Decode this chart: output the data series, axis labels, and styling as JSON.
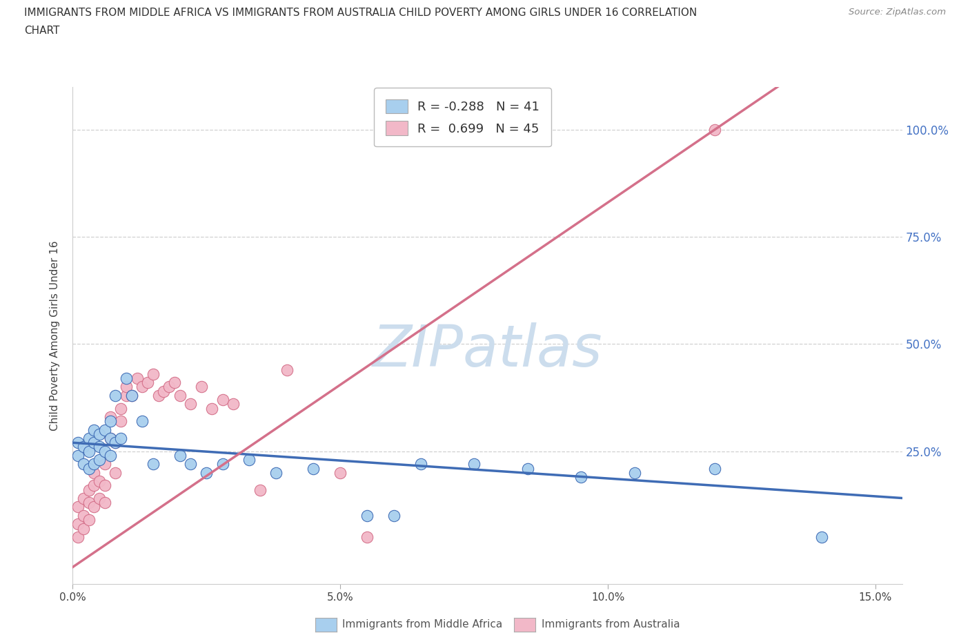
{
  "title_line1": "IMMIGRANTS FROM MIDDLE AFRICA VS IMMIGRANTS FROM AUSTRALIA CHILD POVERTY AMONG GIRLS UNDER 16 CORRELATION",
  "title_line2": "CHART",
  "source": "Source: ZipAtlas.com",
  "ylabel": "Child Poverty Among Girls Under 16",
  "xlim": [
    0.0,
    0.155
  ],
  "ylim": [
    -0.06,
    1.1
  ],
  "xtick_labels": [
    "0.0%",
    "5.0%",
    "10.0%",
    "15.0%"
  ],
  "xtick_vals": [
    0.0,
    0.05,
    0.1,
    0.15
  ],
  "ytick_right_labels": [
    "25.0%",
    "50.0%",
    "75.0%",
    "100.0%"
  ],
  "ytick_vals": [
    0.25,
    0.5,
    0.75,
    1.0
  ],
  "series1_color": "#A8CFEE",
  "series1_line_color": "#3F6CB5",
  "series1_label": "Immigrants from Middle Africa",
  "series1_R": -0.288,
  "series1_N": 41,
  "series2_color": "#F2B8C8",
  "series2_line_color": "#D4708A",
  "series2_label": "Immigrants from Australia",
  "series2_R": 0.699,
  "series2_N": 45,
  "watermark": "ZIPatlas",
  "bg_color": "#ffffff",
  "grid_color": "#d0d0d0",
  "series1_x": [
    0.001,
    0.001,
    0.002,
    0.002,
    0.003,
    0.003,
    0.003,
    0.004,
    0.004,
    0.004,
    0.005,
    0.005,
    0.005,
    0.006,
    0.006,
    0.007,
    0.007,
    0.007,
    0.008,
    0.008,
    0.009,
    0.01,
    0.011,
    0.013,
    0.015,
    0.02,
    0.022,
    0.025,
    0.028,
    0.033,
    0.038,
    0.045,
    0.055,
    0.06,
    0.065,
    0.075,
    0.085,
    0.095,
    0.105,
    0.12,
    0.14
  ],
  "series1_y": [
    0.24,
    0.27,
    0.22,
    0.26,
    0.21,
    0.25,
    0.28,
    0.22,
    0.27,
    0.3,
    0.23,
    0.26,
    0.29,
    0.25,
    0.3,
    0.24,
    0.28,
    0.32,
    0.27,
    0.38,
    0.28,
    0.42,
    0.38,
    0.32,
    0.22,
    0.24,
    0.22,
    0.2,
    0.22,
    0.23,
    0.2,
    0.21,
    0.1,
    0.1,
    0.22,
    0.22,
    0.21,
    0.19,
    0.2,
    0.21,
    0.05
  ],
  "series2_x": [
    0.001,
    0.001,
    0.001,
    0.002,
    0.002,
    0.002,
    0.003,
    0.003,
    0.003,
    0.004,
    0.004,
    0.004,
    0.005,
    0.005,
    0.006,
    0.006,
    0.006,
    0.007,
    0.007,
    0.008,
    0.008,
    0.009,
    0.009,
    0.01,
    0.01,
    0.011,
    0.012,
    0.013,
    0.014,
    0.015,
    0.016,
    0.017,
    0.018,
    0.019,
    0.02,
    0.022,
    0.024,
    0.026,
    0.028,
    0.03,
    0.035,
    0.04,
    0.05,
    0.055,
    0.12
  ],
  "series2_y": [
    0.05,
    0.08,
    0.12,
    0.07,
    0.1,
    0.14,
    0.09,
    0.13,
    0.16,
    0.12,
    0.17,
    0.2,
    0.14,
    0.18,
    0.13,
    0.17,
    0.22,
    0.28,
    0.33,
    0.2,
    0.27,
    0.32,
    0.35,
    0.38,
    0.4,
    0.38,
    0.42,
    0.4,
    0.41,
    0.43,
    0.38,
    0.39,
    0.4,
    0.41,
    0.38,
    0.36,
    0.4,
    0.35,
    0.37,
    0.36,
    0.16,
    0.44,
    0.2,
    0.05,
    1.0
  ]
}
